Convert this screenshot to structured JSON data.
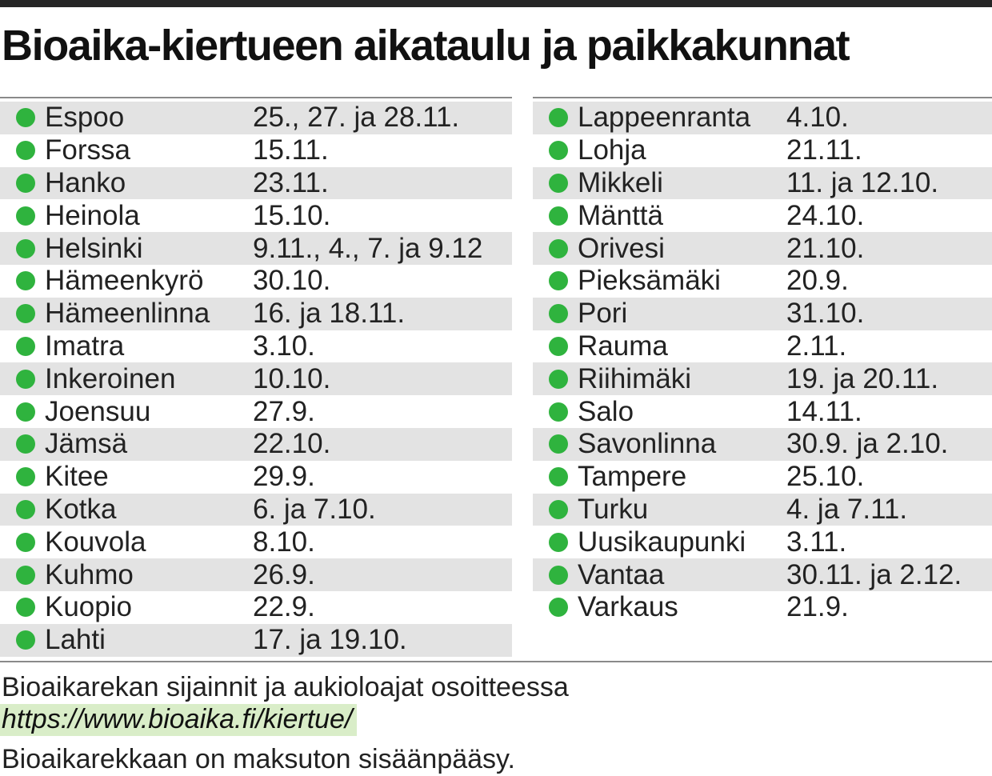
{
  "title": "Bioaika-kiertueen aikataulu ja paikkakunnat",
  "colors": {
    "dot": "#2fb33e",
    "row_shade": "#e3e3e3",
    "link_highlight": "#d9edc8"
  },
  "schedule_left": [
    {
      "city": "Espoo",
      "dates": "25., 27. ja 28.11."
    },
    {
      "city": "Forssa",
      "dates": "15.11."
    },
    {
      "city": "Hanko",
      "dates": "23.11."
    },
    {
      "city": "Heinola",
      "dates": "15.10."
    },
    {
      "city": "Helsinki",
      "dates": "9.11., 4., 7. ja 9.12"
    },
    {
      "city": "Hämeenkyrö",
      "dates": "30.10."
    },
    {
      "city": "Hämeenlinna",
      "dates": "16. ja 18.11."
    },
    {
      "city": "Imatra",
      "dates": "3.10."
    },
    {
      "city": "Inkeroinen",
      "dates": "10.10."
    },
    {
      "city": "Joensuu",
      "dates": "27.9."
    },
    {
      "city": "Jämsä",
      "dates": "22.10."
    },
    {
      "city": "Kitee",
      "dates": "29.9."
    },
    {
      "city": "Kotka",
      "dates": "6. ja 7.10."
    },
    {
      "city": "Kouvola",
      "dates": "8.10."
    },
    {
      "city": "Kuhmo",
      "dates": "26.9."
    },
    {
      "city": "Kuopio",
      "dates": "22.9."
    },
    {
      "city": "Lahti",
      "dates": "17. ja 19.10."
    }
  ],
  "schedule_right": [
    {
      "city": "Lappeenranta",
      "dates": "4.10."
    },
    {
      "city": "Lohja",
      "dates": "21.11."
    },
    {
      "city": "Mikkeli",
      "dates": "11. ja 12.10."
    },
    {
      "city": "Mänttä",
      "dates": "24.10."
    },
    {
      "city": "Orivesi",
      "dates": "21.10."
    },
    {
      "city": "Pieksämäki",
      "dates": "20.9."
    },
    {
      "city": "Pori",
      "dates": "31.10."
    },
    {
      "city": "Rauma",
      "dates": "2.11."
    },
    {
      "city": "Riihimäki",
      "dates": "19. ja 20.11."
    },
    {
      "city": "Salo",
      "dates": "14.11."
    },
    {
      "city": "Savonlinna",
      "dates": "30.9. ja 2.10."
    },
    {
      "city": "Tampere",
      "dates": "25.10."
    },
    {
      "city": "Turku",
      "dates": "4. ja 7.11."
    },
    {
      "city": "Uusikaupunki",
      "dates": "3.11."
    },
    {
      "city": "Vantaa",
      "dates": "30.11. ja 2.12."
    },
    {
      "city": "Varkaus",
      "dates": "21.9."
    }
  ],
  "footer": {
    "line1": "Bioaikarekan sijainnit ja aukioloajat osoitteessa",
    "link": "https://www.bioaika.fi/kiertue/",
    "line3": "Bioaikarekkaan on maksuton sisäänpääsy."
  }
}
